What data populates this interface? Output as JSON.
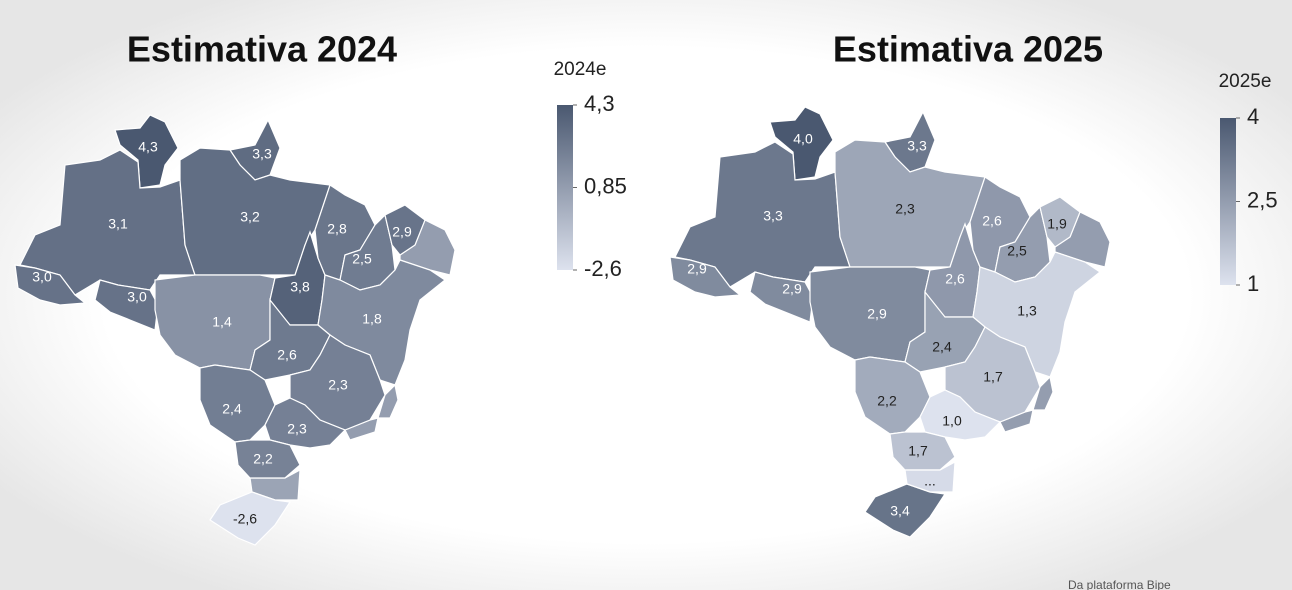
{
  "maps": [
    {
      "title": "Estimativa 2024",
      "legend_title": "2024e",
      "colors": [
        "#dde2ee",
        "#4a5870"
      ],
      "legend_ticks": [
        {
          "value": 4.3,
          "label": "4,3"
        },
        {
          "value": 0.85,
          "label": "0,85"
        },
        {
          "value": -2.6,
          "label": "-2,6"
        }
      ],
      "regions": [
        {
          "label": "4,3",
          "value": 4.3
        },
        {
          "label": "3,3",
          "value": 3.3
        },
        {
          "label": "3,1",
          "value": 3.1
        },
        {
          "label": "3,2",
          "value": 3.2
        },
        {
          "label": "3,0",
          "value": 3.0
        },
        {
          "label": "3,0",
          "value": 3.0
        },
        {
          "label": "1,4",
          "value": 1.4
        },
        {
          "label": "3,8",
          "value": 3.8
        },
        {
          "label": "2,8",
          "value": 2.8
        },
        {
          "label": "2,5",
          "value": 2.5
        },
        {
          "label": "2,9",
          "value": 2.9
        },
        {
          "label": "1,8",
          "value": 1.8
        },
        {
          "label": "2,6",
          "value": 2.6
        },
        {
          "label": "2,3",
          "value": 2.3
        },
        {
          "label": "2,4",
          "value": 2.4
        },
        {
          "label": "2,3",
          "value": 2.3
        },
        {
          "label": "2,2",
          "value": 2.2
        },
        {
          "label": "-2,6",
          "value": -2.6
        }
      ]
    },
    {
      "title": "Estimativa 2025",
      "legend_title": "2025e",
      "colors": [
        "#dde2ee",
        "#4a5870"
      ],
      "legend_ticks": [
        4,
        {
          "value": 2.5,
          "label": "2,5"
        },
        1
      ],
      "regions": [
        {
          "label": "4,0",
          "value": 4.0
        },
        {
          "label": "3,3",
          "value": 3.3
        },
        {
          "label": "3,3",
          "value": 3.3
        },
        {
          "label": "2,3",
          "value": 2.3
        },
        {
          "label": "2,9",
          "value": 2.9
        },
        {
          "label": "2,9",
          "value": 2.9
        },
        {
          "label": "2,9",
          "value": 2.9
        },
        {
          "label": "2,6",
          "value": 2.6
        },
        {
          "label": "2,6",
          "value": 2.6
        },
        {
          "label": "2,5",
          "value": 2.5
        },
        {
          "label": "1,9",
          "value": 1.9
        },
        {
          "label": "1,3",
          "value": 1.3
        },
        {
          "label": "2,4",
          "value": 2.4
        },
        {
          "label": "1,7",
          "value": 1.7
        },
        {
          "label": "2,2",
          "value": 2.2
        },
        {
          "label": "1,0",
          "value": 1.0
        },
        {
          "label": "1,7",
          "value": 1.7
        },
        {
          "label": "3,4",
          "value": 3.4
        },
        {
          "label": "...",
          "value": null
        }
      ]
    }
  ],
  "footer": "Da plataforma Bipe"
}
